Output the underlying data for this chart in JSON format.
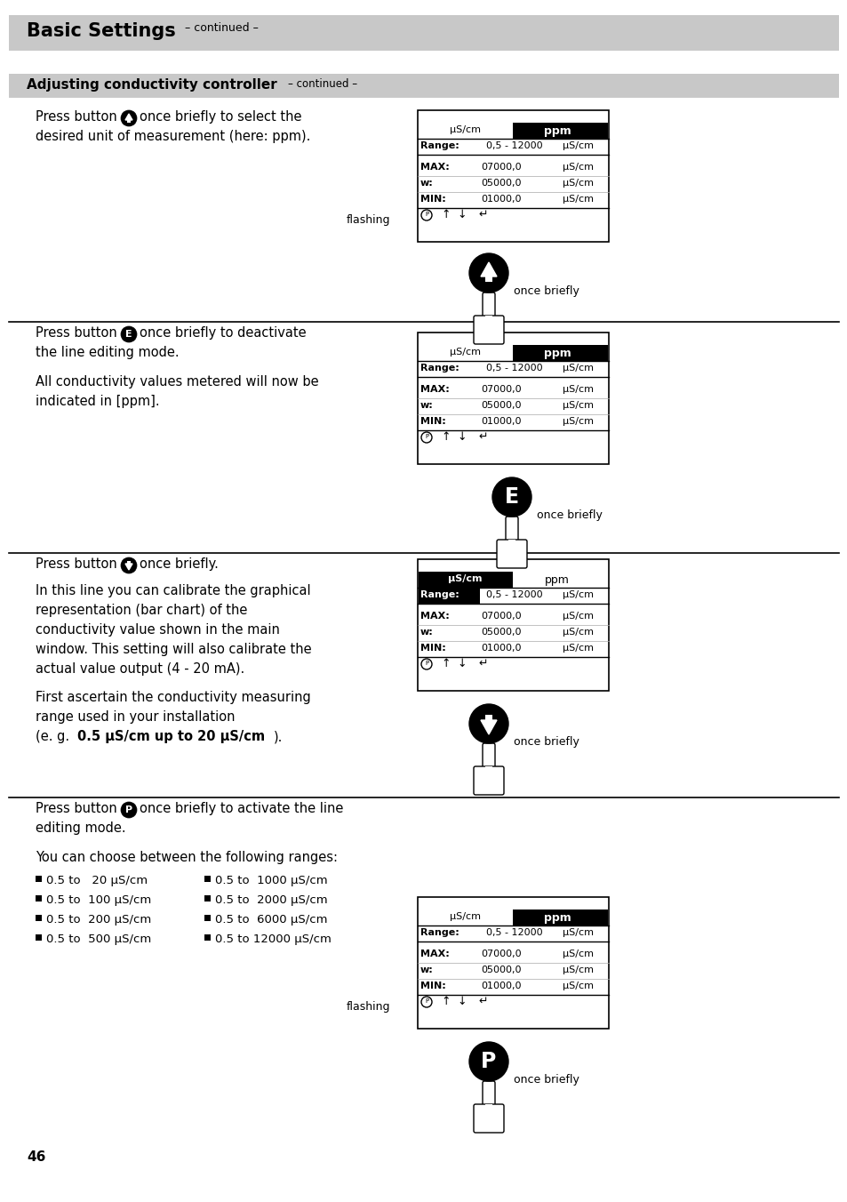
{
  "page_bg": "#ffffff",
  "title_bg": "#c8c8c8",
  "section_bg": "#c8c8c8",
  "title_text": "Basic Settings",
  "title_continued": "– continued –",
  "section_title": "Adjusting conductivity controller",
  "section_continued": "– continued –",
  "page_number": "46",
  "display_panels": [
    {
      "highlight_type": "right",
      "header_left": "μS/cm",
      "header_right": "ppm",
      "range_label": "Range:",
      "range_value": "0,5 - 12000",
      "range_unit": "μS/cm",
      "rows": [
        {
          "label": "MAX:",
          "value": "07000,0",
          "unit": "μS/cm"
        },
        {
          "label": "w:",
          "value": "05000,0",
          "unit": "μS/cm"
        },
        {
          "label": "MIN:",
          "value": "01000,0",
          "unit": "μS/cm"
        }
      ]
    },
    {
      "highlight_type": "right",
      "header_left": "μS/cm",
      "header_right": "ppm",
      "range_label": "Range:",
      "range_value": "0,5 - 12000",
      "range_unit": "μS/cm",
      "rows": [
        {
          "label": "MAX:",
          "value": "07000,0",
          "unit": "μS/cm"
        },
        {
          "label": "w:",
          "value": "05000,0",
          "unit": "μS/cm"
        },
        {
          "label": "MIN:",
          "value": "01000,0",
          "unit": "μS/cm"
        }
      ]
    },
    {
      "highlight_type": "left",
      "header_left": "μS/cm",
      "header_right": "ppm",
      "range_label": "Range:",
      "range_value": "0,5 - 12000",
      "range_unit": "μS/cm",
      "rows": [
        {
          "label": "MAX:",
          "value": "07000,0",
          "unit": "μS/cm"
        },
        {
          "label": "w:",
          "value": "05000,0",
          "unit": "μS/cm"
        },
        {
          "label": "MIN:",
          "value": "01000,0",
          "unit": "μS/cm"
        }
      ]
    },
    {
      "highlight_type": "right",
      "header_left": "μS/cm",
      "header_right": "ppm",
      "range_label": "Range:",
      "range_value": "0,5 - 12000",
      "range_unit": "μS/cm",
      "rows": [
        {
          "label": "MAX:",
          "value": "07000,0",
          "unit": "μS/cm"
        },
        {
          "label": "w:",
          "value": "05000,0",
          "unit": "μS/cm"
        },
        {
          "label": "MIN:",
          "value": "01000,0",
          "unit": "μS/cm"
        }
      ]
    }
  ],
  "ranges_col1": [
    "0.5 to   20 μS/cm",
    "0.5 to  100 μS/cm",
    "0.5 to  200 μS/cm",
    "0.5 to  500 μS/cm"
  ],
  "ranges_col2": [
    "0.5 to  1000 μS/cm",
    "0.5 to  2000 μS/cm",
    "0.5 to  6000 μS/cm",
    "0.5 to 12000 μS/cm"
  ]
}
